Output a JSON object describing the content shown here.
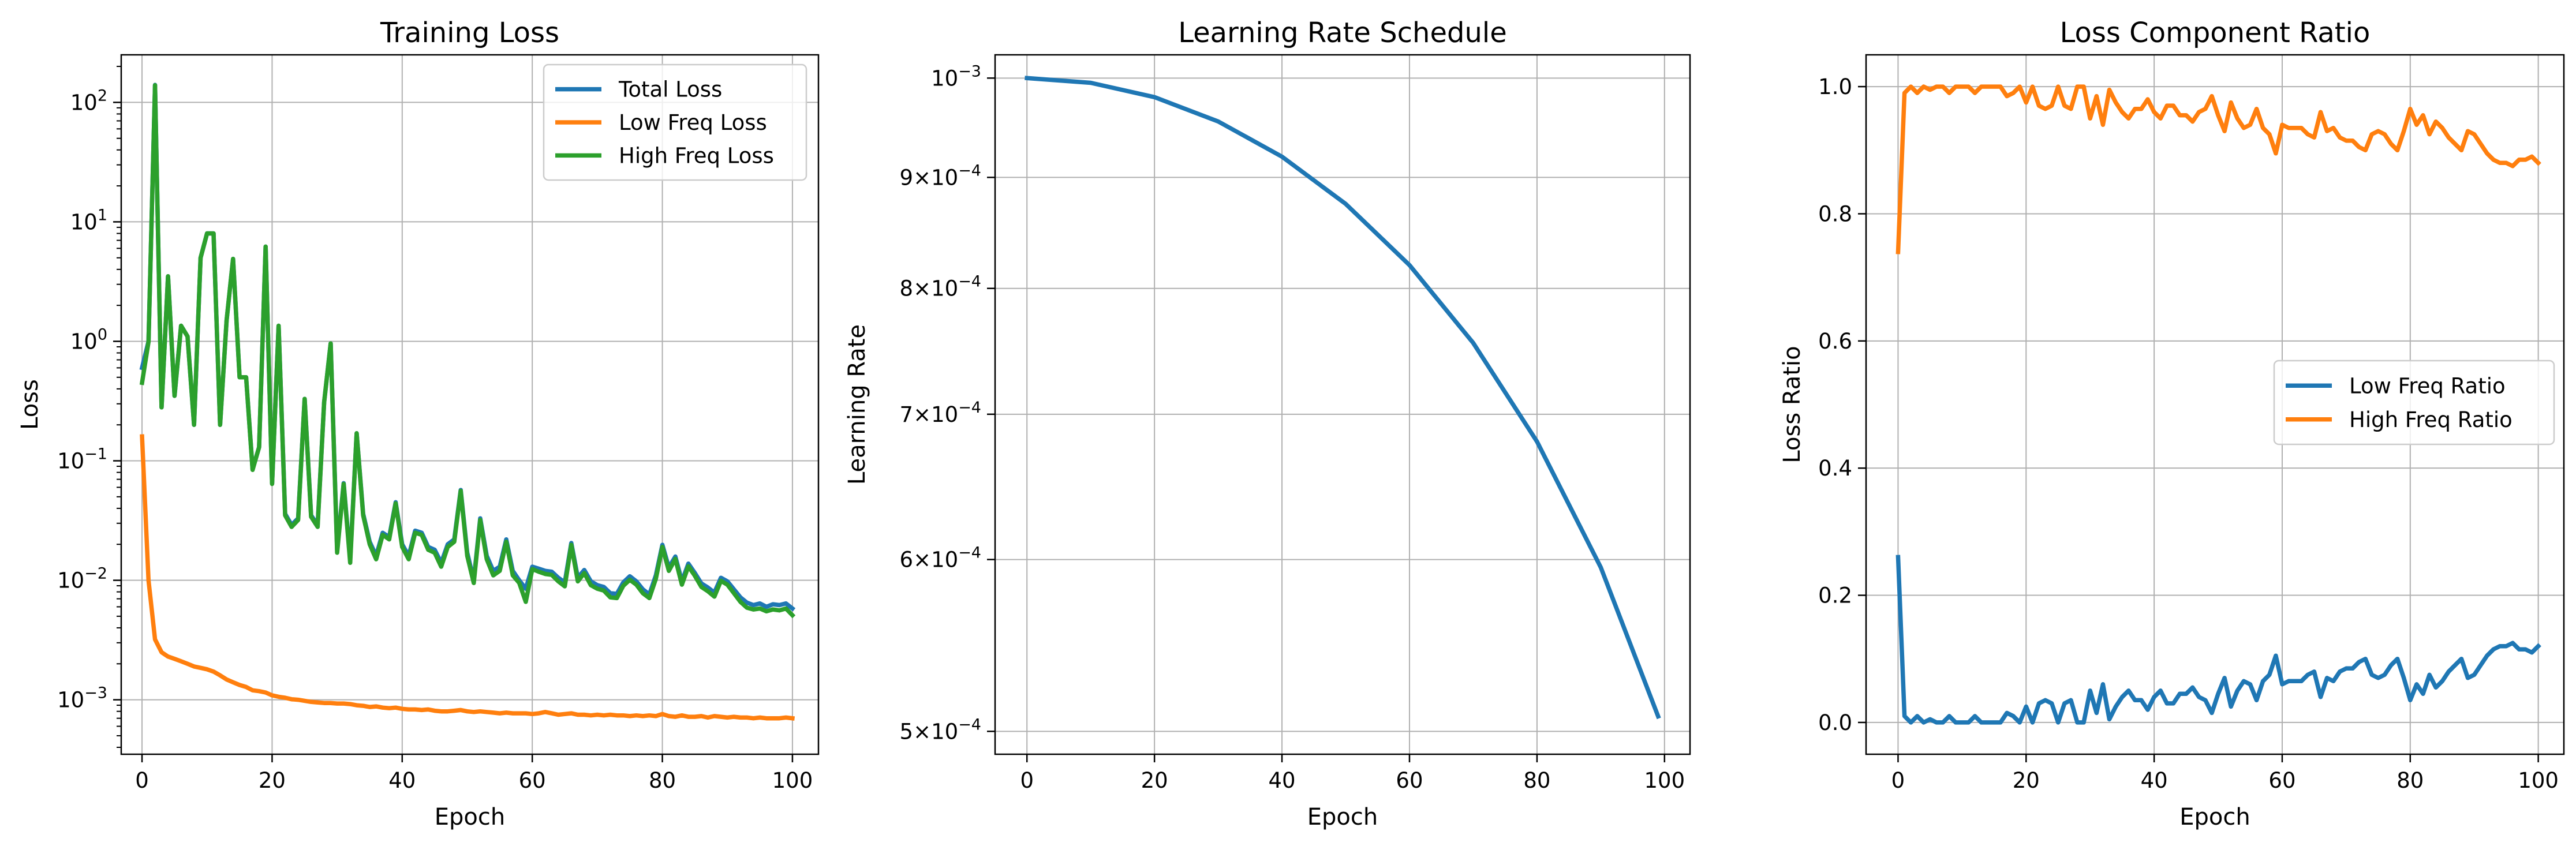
{
  "chart_data": [
    {
      "type": "line",
      "title": "Training Loss",
      "xlabel": "Epoch",
      "ylabel": "Loss",
      "yscale": "log",
      "xlim": [
        -3.2,
        104
      ],
      "ylim": [
        0.00035,
        250
      ],
      "x_ticks": [
        0,
        20,
        40,
        60,
        80,
        100
      ],
      "x_tick_labels": [
        "0",
        "20",
        "40",
        "60",
        "80",
        "100"
      ],
      "y_ticks": [
        0.001,
        0.01,
        0.1,
        1,
        10,
        100
      ],
      "y_tick_labels": [
        {
          "base": "10",
          "exp": "−3"
        },
        {
          "base": "10",
          "exp": "−2"
        },
        {
          "base": "10",
          "exp": "−1"
        },
        {
          "base": "10",
          "exp": "0"
        },
        {
          "base": "10",
          "exp": "1"
        },
        {
          "base": "10",
          "exp": "2"
        }
      ],
      "grid": true,
      "legend_position": "upper right",
      "series": [
        {
          "name": "Total Loss",
          "color": "#1f77b4",
          "values": [
            0.6,
            1.0,
            140,
            0.28,
            3.5,
            0.35,
            1.35,
            1.1,
            0.2,
            5.0,
            8.0,
            8.0,
            0.2,
            1.5,
            4.9,
            0.5,
            0.5,
            0.085,
            0.13,
            6.2,
            0.065,
            1.35,
            0.036,
            0.029,
            0.033,
            0.33,
            0.035,
            0.029,
            0.31,
            0.96,
            0.018,
            0.065,
            0.015,
            0.17,
            0.036,
            0.021,
            0.016,
            0.025,
            0.023,
            0.045,
            0.02,
            0.016,
            0.026,
            0.025,
            0.019,
            0.018,
            0.014,
            0.02,
            0.022,
            0.057,
            0.017,
            0.01,
            0.033,
            0.016,
            0.012,
            0.013,
            0.022,
            0.012,
            0.01,
            0.0085,
            0.013,
            0.0125,
            0.012,
            0.0118,
            0.0105,
            0.0096,
            0.0205,
            0.0105,
            0.0122,
            0.0098,
            0.0091,
            0.0088,
            0.0078,
            0.0077,
            0.0096,
            0.0108,
            0.0098,
            0.0084,
            0.0076,
            0.011,
            0.0198,
            0.0128,
            0.0158,
            0.0098,
            0.0138,
            0.0115,
            0.0094,
            0.0087,
            0.0079,
            0.0105,
            0.0098,
            0.0084,
            0.0072,
            0.0065,
            0.0062,
            0.0064,
            0.006,
            0.0063,
            0.0062,
            0.0064,
            0.0058
          ]
        },
        {
          "name": "Low Freq Loss",
          "color": "#ff7f0e",
          "values": [
            0.16,
            0.01,
            0.0032,
            0.0025,
            0.0023,
            0.0022,
            0.0021,
            0.002,
            0.0019,
            0.00185,
            0.0018,
            0.00172,
            0.0016,
            0.00148,
            0.0014,
            0.00133,
            0.00128,
            0.0012,
            0.00118,
            0.00115,
            0.00109,
            0.00106,
            0.00104,
            0.00101,
            0.001,
            0.00098,
            0.00096,
            0.00095,
            0.00094,
            0.00094,
            0.00093,
            0.00093,
            0.00092,
            0.0009,
            0.00089,
            0.00087,
            0.00088,
            0.00086,
            0.00085,
            0.00086,
            0.00084,
            0.00083,
            0.00083,
            0.00082,
            0.00083,
            0.00081,
            0.0008,
            0.0008,
            0.00081,
            0.00082,
            0.0008,
            0.00079,
            0.0008,
            0.00079,
            0.00078,
            0.00077,
            0.00078,
            0.00077,
            0.00077,
            0.00077,
            0.00076,
            0.00077,
            0.00079,
            0.00077,
            0.00075,
            0.00076,
            0.00077,
            0.00075,
            0.00075,
            0.00074,
            0.00075,
            0.00074,
            0.00075,
            0.00074,
            0.00074,
            0.00073,
            0.00074,
            0.00073,
            0.00074,
            0.00073,
            0.00076,
            0.00073,
            0.00072,
            0.00074,
            0.00072,
            0.00072,
            0.00073,
            0.00071,
            0.00073,
            0.00072,
            0.00071,
            0.00072,
            0.00071,
            0.00071,
            0.0007,
            0.00071,
            0.0007,
            0.0007,
            0.0007,
            0.00071,
            0.0007
          ]
        },
        {
          "name": "High Freq Loss",
          "color": "#2ca02c",
          "values": [
            0.45,
            0.99,
            139,
            0.28,
            3.5,
            0.35,
            1.35,
            1.1,
            0.2,
            5.0,
            8.0,
            8.0,
            0.2,
            1.5,
            4.9,
            0.5,
            0.5,
            0.084,
            0.13,
            6.2,
            0.064,
            1.35,
            0.035,
            0.028,
            0.032,
            0.33,
            0.034,
            0.028,
            0.31,
            0.96,
            0.017,
            0.064,
            0.014,
            0.17,
            0.035,
            0.02,
            0.015,
            0.024,
            0.022,
            0.044,
            0.019,
            0.015,
            0.025,
            0.024,
            0.018,
            0.017,
            0.013,
            0.019,
            0.021,
            0.056,
            0.016,
            0.0095,
            0.032,
            0.015,
            0.011,
            0.012,
            0.021,
            0.011,
            0.0095,
            0.0066,
            0.0124,
            0.0118,
            0.0113,
            0.0111,
            0.0098,
            0.0089,
            0.0198,
            0.0098,
            0.0115,
            0.0091,
            0.0085,
            0.0082,
            0.0072,
            0.0071,
            0.009,
            0.0101,
            0.0092,
            0.0078,
            0.0071,
            0.0103,
            0.019,
            0.012,
            0.0151,
            0.0092,
            0.0131,
            0.0109,
            0.0088,
            0.0081,
            0.0073,
            0.0099,
            0.0092,
            0.0078,
            0.0066,
            0.0059,
            0.0057,
            0.0058,
            0.0055,
            0.0057,
            0.0056,
            0.0058,
            0.0051
          ]
        }
      ]
    },
    {
      "type": "line",
      "title": "Learning Rate Schedule",
      "xlabel": "Epoch",
      "ylabel": "Learning Rate",
      "yscale": "log",
      "xlim": [
        -5,
        104
      ],
      "ylim": [
        0.000488,
        0.001025
      ],
      "x_ticks": [
        0,
        20,
        40,
        60,
        80,
        100
      ],
      "x_tick_labels": [
        "0",
        "20",
        "40",
        "60",
        "80",
        "100"
      ],
      "y_ticks": [
        0.0005,
        0.0006,
        0.0007,
        0.0008,
        0.0009,
        0.001
      ],
      "y_tick_labels": [
        {
          "mant": "5",
          "base": "10",
          "exp": "−4"
        },
        {
          "mant": "6",
          "base": "10",
          "exp": "−4"
        },
        {
          "mant": "7",
          "base": "10",
          "exp": "−4"
        },
        {
          "mant": "8",
          "base": "10",
          "exp": "−4"
        },
        {
          "mant": "9",
          "base": "10",
          "exp": "−4"
        },
        {
          "mant": "",
          "base": "10",
          "exp": "−3"
        }
      ],
      "grid": true,
      "series": [
        {
          "color": "#1f77b4",
          "x": [
            0,
            10,
            20,
            30,
            40,
            50,
            60,
            70,
            80,
            90,
            99
          ],
          "values": [
            0.001,
            0.000995,
            0.00098,
            0.000955,
            0.00092,
            0.000875,
            0.00082,
            0.000755,
            0.00068,
            0.000595,
            0.000508
          ]
        }
      ]
    },
    {
      "type": "line",
      "title": "Loss Component Ratio",
      "xlabel": "Epoch",
      "ylabel": "Loss Ratio",
      "xlim": [
        -5,
        104
      ],
      "ylim": [
        -0.05,
        1.05
      ],
      "x_ticks": [
        0,
        20,
        40,
        60,
        80,
        100
      ],
      "x_tick_labels": [
        "0",
        "20",
        "40",
        "60",
        "80",
        "100"
      ],
      "y_ticks": [
        0,
        0.2,
        0.4,
        0.6,
        0.8,
        1.0
      ],
      "y_tick_labels": [
        "0.0",
        "0.2",
        "0.4",
        "0.6",
        "0.8",
        "1.0"
      ],
      "grid": true,
      "legend_position": "center right",
      "series": [
        {
          "name": "Low Freq Ratio",
          "color": "#1f77b4",
          "values": [
            0.26,
            0.01,
            0.0,
            0.01,
            0.0,
            0.005,
            0.0,
            0.0,
            0.01,
            0.0,
            0.0,
            0.0,
            0.01,
            0.0,
            0.0,
            0.0,
            0.0,
            0.015,
            0.01,
            0.0,
            0.025,
            0.0,
            0.03,
            0.035,
            0.03,
            0.0,
            0.03,
            0.035,
            0.0,
            0.0,
            0.05,
            0.015,
            0.06,
            0.005,
            0.025,
            0.04,
            0.05,
            0.035,
            0.035,
            0.02,
            0.04,
            0.05,
            0.03,
            0.03,
            0.045,
            0.045,
            0.055,
            0.04,
            0.035,
            0.015,
            0.045,
            0.07,
            0.025,
            0.05,
            0.065,
            0.06,
            0.035,
            0.065,
            0.075,
            0.105,
            0.06,
            0.065,
            0.065,
            0.065,
            0.075,
            0.08,
            0.04,
            0.07,
            0.065,
            0.08,
            0.085,
            0.085,
            0.095,
            0.1,
            0.075,
            0.07,
            0.075,
            0.09,
            0.1,
            0.07,
            0.035,
            0.06,
            0.045,
            0.075,
            0.055,
            0.065,
            0.08,
            0.09,
            0.1,
            0.07,
            0.075,
            0.09,
            0.105,
            0.115,
            0.12,
            0.12,
            0.125,
            0.115,
            0.115,
            0.11,
            0.12
          ]
        },
        {
          "name": "High Freq Ratio",
          "color": "#ff7f0e",
          "values": [
            0.74,
            0.99,
            1.0,
            0.99,
            1.0,
            0.995,
            1.0,
            1.0,
            0.99,
            1.0,
            1.0,
            1.0,
            0.99,
            1.0,
            1.0,
            1.0,
            1.0,
            0.985,
            0.99,
            1.0,
            0.975,
            1.0,
            0.97,
            0.965,
            0.97,
            1.0,
            0.97,
            0.965,
            1.0,
            1.0,
            0.95,
            0.985,
            0.94,
            0.995,
            0.975,
            0.96,
            0.95,
            0.965,
            0.965,
            0.98,
            0.96,
            0.95,
            0.97,
            0.97,
            0.955,
            0.955,
            0.945,
            0.96,
            0.965,
            0.985,
            0.955,
            0.93,
            0.975,
            0.95,
            0.935,
            0.94,
            0.965,
            0.935,
            0.925,
            0.895,
            0.94,
            0.935,
            0.935,
            0.935,
            0.925,
            0.92,
            0.96,
            0.93,
            0.935,
            0.92,
            0.915,
            0.915,
            0.905,
            0.9,
            0.925,
            0.93,
            0.925,
            0.91,
            0.9,
            0.93,
            0.965,
            0.94,
            0.955,
            0.925,
            0.945,
            0.935,
            0.92,
            0.91,
            0.9,
            0.93,
            0.925,
            0.91,
            0.895,
            0.885,
            0.88,
            0.88,
            0.875,
            0.885,
            0.885,
            0.89,
            0.88
          ]
        }
      ]
    }
  ]
}
